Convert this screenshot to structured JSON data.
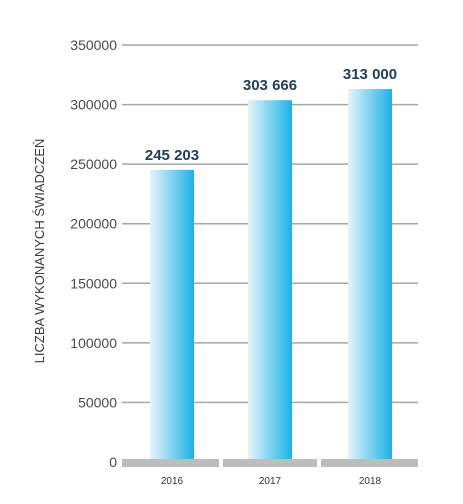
{
  "chart_data": {
    "type": "bar",
    "title": "",
    "xlabel": "",
    "ylabel": "LICZBA WYKONANYCH ŚWIADCZEŃ",
    "categories": [
      "2016",
      "2017",
      "2018"
    ],
    "values": [
      245203,
      303666,
      313000
    ],
    "value_labels": [
      "245 203",
      "303 666",
      "313 000"
    ],
    "ylim": [
      0,
      350000
    ],
    "yticks": [
      0,
      50000,
      100000,
      150000,
      200000,
      250000,
      300000,
      350000
    ],
    "ytick_labels": [
      "0",
      "50000",
      "100000",
      "150000",
      "200000",
      "250000",
      "300000",
      "350000"
    ],
    "grid": true,
    "legend": "none",
    "colors": {
      "bar_light": "#e6f4fb",
      "bar_dark": "#1ab2e6",
      "grid": "#a6a6a6",
      "baseline": "#bdbdbd",
      "value_text": "#1f3d5c"
    }
  }
}
